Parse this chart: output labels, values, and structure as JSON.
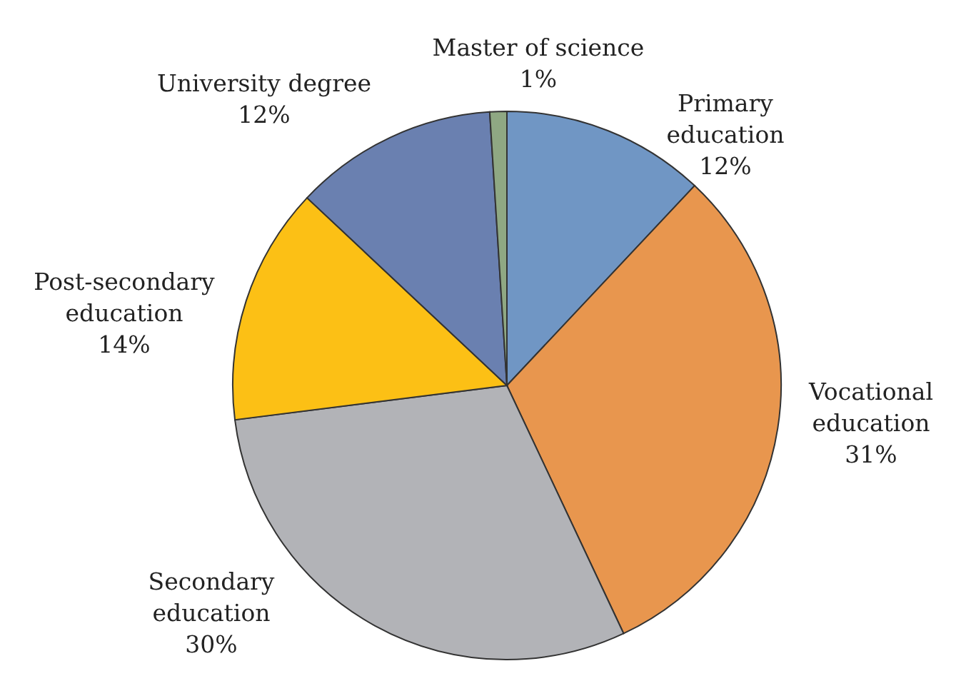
{
  "chart_data": {
    "type": "pie",
    "categories": [
      "Primary education",
      "Vocational education",
      "Secondary education",
      "Post-secondary education",
      "University degree",
      "Master of science"
    ],
    "values": [
      12,
      31,
      30,
      14,
      12,
      1
    ],
    "value_labels": [
      "12%",
      "31%",
      "30%",
      "14%",
      "12%",
      "1%"
    ],
    "colors": [
      "#7096c4",
      "#e8964e",
      "#b2b3b7",
      "#fcc015",
      "#6a80b0",
      "#8fa883"
    ]
  }
}
